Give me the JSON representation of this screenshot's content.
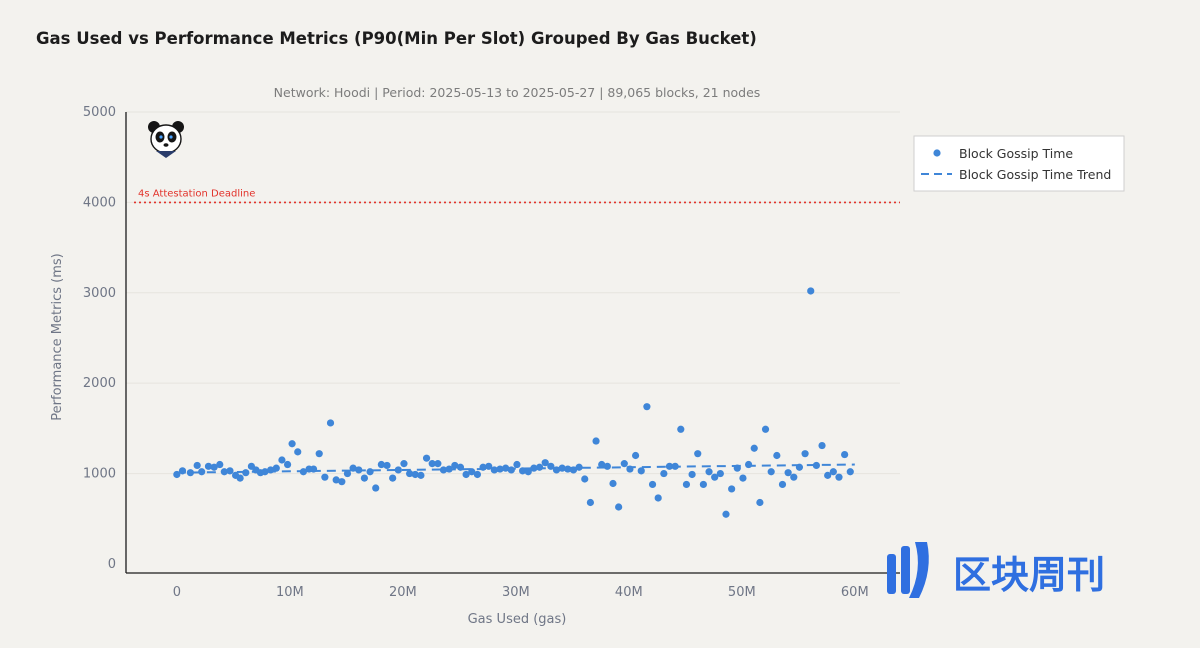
{
  "title": "Gas Used vs Performance Metrics (P90(Min Per Slot) Grouped By Gas Bucket)",
  "watermark": {
    "text": "区块周刊",
    "color": "#2f6fe0"
  },
  "chart_data": {
    "type": "scatter",
    "subtitle": "Network: Hoodi | Period: 2025-05-13 to 2025-05-27 | 89,065 blocks, 21 nodes",
    "xlabel": "Gas Used (gas)",
    "ylabel": "Performance Metrics (ms)",
    "xlim": [
      -4.5,
      64
    ],
    "ylim": [
      -100,
      5000
    ],
    "x_ticks": [
      0,
      10,
      20,
      30,
      40,
      50,
      60
    ],
    "x_tick_labels": [
      "0",
      "10M",
      "20M",
      "30M",
      "40M",
      "50M",
      "60M"
    ],
    "y_ticks": [
      0,
      1000,
      2000,
      3000,
      4000,
      5000
    ],
    "y_tick_labels": [
      "0",
      "1000",
      "2000",
      "3000",
      "4000",
      "5000"
    ],
    "grid": true,
    "legend_position": "top-right",
    "reference_line": {
      "y": 4000,
      "label": "4s Attestation Deadline",
      "color": "#e2332b"
    },
    "series": [
      {
        "name": "Block Gossip Time",
        "color": "#3f86d8",
        "points": [
          [
            0.0,
            990
          ],
          [
            0.5,
            1030
          ],
          [
            1.2,
            1010
          ],
          [
            1.8,
            1090
          ],
          [
            2.2,
            1020
          ],
          [
            2.8,
            1080
          ],
          [
            3.3,
            1070
          ],
          [
            3.8,
            1100
          ],
          [
            4.2,
            1020
          ],
          [
            4.7,
            1030
          ],
          [
            5.2,
            980
          ],
          [
            5.6,
            950
          ],
          [
            6.1,
            1010
          ],
          [
            6.6,
            1080
          ],
          [
            7.0,
            1040
          ],
          [
            7.4,
            1010
          ],
          [
            7.8,
            1020
          ],
          [
            8.3,
            1040
          ],
          [
            8.8,
            1060
          ],
          [
            9.3,
            1150
          ],
          [
            9.8,
            1100
          ],
          [
            10.2,
            1330
          ],
          [
            10.7,
            1240
          ],
          [
            11.2,
            1020
          ],
          [
            11.7,
            1050
          ],
          [
            12.1,
            1050
          ],
          [
            12.6,
            1220
          ],
          [
            13.1,
            960
          ],
          [
            13.6,
            1560
          ],
          [
            14.1,
            930
          ],
          [
            14.6,
            910
          ],
          [
            15.1,
            1000
          ],
          [
            15.6,
            1060
          ],
          [
            16.1,
            1040
          ],
          [
            16.6,
            950
          ],
          [
            17.1,
            1020
          ],
          [
            17.6,
            840
          ],
          [
            18.1,
            1100
          ],
          [
            18.6,
            1090
          ],
          [
            19.1,
            950
          ],
          [
            19.6,
            1040
          ],
          [
            20.1,
            1110
          ],
          [
            20.6,
            1000
          ],
          [
            21.1,
            990
          ],
          [
            21.6,
            980
          ],
          [
            22.1,
            1170
          ],
          [
            22.6,
            1110
          ],
          [
            23.1,
            1110
          ],
          [
            23.6,
            1040
          ],
          [
            24.1,
            1050
          ],
          [
            24.6,
            1090
          ],
          [
            25.1,
            1070
          ],
          [
            25.6,
            990
          ],
          [
            26.1,
            1020
          ],
          [
            26.6,
            990
          ],
          [
            27.1,
            1070
          ],
          [
            27.6,
            1080
          ],
          [
            28.1,
            1040
          ],
          [
            28.6,
            1050
          ],
          [
            29.1,
            1060
          ],
          [
            29.6,
            1040
          ],
          [
            30.1,
            1100
          ],
          [
            30.6,
            1030
          ],
          [
            31.1,
            1020
          ],
          [
            31.6,
            1060
          ],
          [
            32.1,
            1070
          ],
          [
            32.6,
            1120
          ],
          [
            33.1,
            1080
          ],
          [
            33.6,
            1040
          ],
          [
            34.1,
            1060
          ],
          [
            34.6,
            1050
          ],
          [
            35.1,
            1040
          ],
          [
            35.6,
            1070
          ],
          [
            36.1,
            940
          ],
          [
            36.6,
            680
          ],
          [
            37.1,
            1360
          ],
          [
            37.6,
            1100
          ],
          [
            38.1,
            1080
          ],
          [
            38.6,
            890
          ],
          [
            39.1,
            630
          ],
          [
            39.6,
            1110
          ],
          [
            40.1,
            1050
          ],
          [
            40.6,
            1200
          ],
          [
            41.1,
            1030
          ],
          [
            41.6,
            1740
          ],
          [
            42.1,
            880
          ],
          [
            42.6,
            730
          ],
          [
            43.1,
            1000
          ],
          [
            43.6,
            1080
          ],
          [
            44.1,
            1080
          ],
          [
            44.6,
            1490
          ],
          [
            45.1,
            880
          ],
          [
            45.6,
            990
          ],
          [
            46.1,
            1220
          ],
          [
            46.6,
            880
          ],
          [
            47.1,
            1020
          ],
          [
            47.6,
            960
          ],
          [
            48.1,
            1000
          ],
          [
            48.6,
            550
          ],
          [
            49.1,
            830
          ],
          [
            49.6,
            1060
          ],
          [
            50.1,
            950
          ],
          [
            50.6,
            1100
          ],
          [
            51.1,
            1280
          ],
          [
            51.6,
            680
          ],
          [
            52.1,
            1490
          ],
          [
            52.6,
            1020
          ],
          [
            53.1,
            1200
          ],
          [
            53.6,
            880
          ],
          [
            54.1,
            1010
          ],
          [
            54.6,
            960
          ],
          [
            55.1,
            1070
          ],
          [
            55.6,
            1220
          ],
          [
            56.1,
            3020
          ],
          [
            56.6,
            1090
          ],
          [
            57.1,
            1310
          ],
          [
            57.6,
            980
          ],
          [
            58.1,
            1020
          ],
          [
            58.6,
            960
          ],
          [
            59.1,
            1210
          ],
          [
            59.6,
            1020
          ]
        ]
      },
      {
        "name": "Block Gossip Time Trend",
        "color": "#3f86d8",
        "style": "dashed",
        "points": [
          [
            0,
            1010
          ],
          [
            60,
            1100
          ]
        ]
      }
    ]
  }
}
